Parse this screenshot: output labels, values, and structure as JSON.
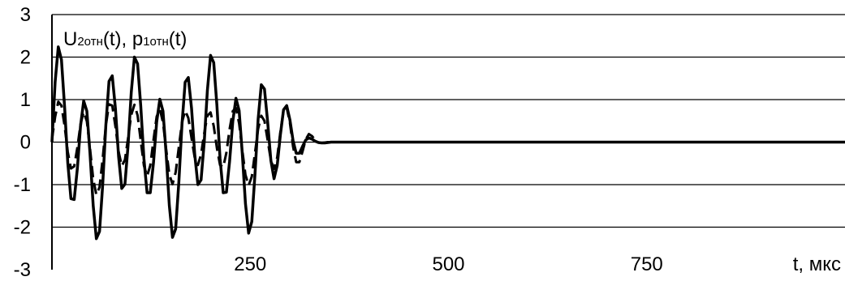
{
  "chart_data": {
    "type": "line",
    "title": "",
    "series_label": {
      "u_main": "U",
      "u_sub": "2отн",
      "u_tail": "(t), ",
      "p_main": "p",
      "p_sub": "1отн",
      "p_tail": "(t)"
    },
    "xlabel": "t, мкс",
    "ylabel": "",
    "xlim": [
      0,
      1000
    ],
    "ylim": [
      -3,
      3
    ],
    "x_ticks": [
      250,
      500,
      750
    ],
    "x_tick_labels": [
      "250",
      "500",
      "750"
    ],
    "y_ticks": [
      3,
      2,
      1,
      0,
      -1,
      -2,
      -3
    ],
    "y_tick_labels": [
      "3",
      "2",
      "1",
      "0",
      "-1",
      "-2",
      "-3"
    ],
    "grid": "horizontal",
    "line_color": "#000000",
    "series": [
      {
        "style": "solid",
        "x": [
          0,
          4,
          8,
          12,
          16,
          20,
          24,
          28,
          32,
          36,
          40,
          44,
          48,
          52,
          56,
          60,
          64,
          68,
          72,
          76,
          80,
          84,
          88,
          92,
          96,
          100,
          104,
          108,
          112,
          116,
          120,
          124,
          128,
          132,
          136,
          140,
          144,
          148,
          152,
          156,
          160,
          164,
          168,
          172,
          176,
          180,
          184,
          188,
          192,
          196,
          200,
          204,
          208,
          212,
          216,
          220,
          224,
          228,
          232,
          236,
          240,
          244,
          248,
          252,
          256,
          260,
          264,
          268,
          272,
          276,
          280,
          284,
          288,
          292,
          296,
          300,
          304,
          308,
          312,
          316,
          320,
          324,
          328,
          332,
          336,
          340,
          344,
          348,
          352,
          356,
          360,
          364,
          368,
          372,
          376,
          380,
          384,
          388,
          392,
          396,
          400,
          420,
          440,
          460,
          480,
          500,
          600,
          700,
          800,
          900,
          1000
        ],
        "y": [
          0.0,
          1.41,
          2.24,
          1.94,
          0.82,
          -0.49,
          -1.33,
          -1.35,
          -0.62,
          0.38,
          0.97,
          0.73,
          -0.27,
          -1.49,
          -2.27,
          -2.1,
          -1.01,
          0.4,
          1.43,
          1.56,
          0.79,
          -0.34,
          -1.09,
          -0.99,
          -0.07,
          1.17,
          2.0,
          1.84,
          0.85,
          -0.39,
          -1.19,
          -1.19,
          -0.48,
          0.47,
          1.01,
          0.73,
          -0.28,
          -1.49,
          -2.24,
          -2.04,
          -0.95,
          0.42,
          1.41,
          1.52,
          0.79,
          -0.29,
          -1.0,
          -0.89,
          0.0,
          1.22,
          2.04,
          1.87,
          0.87,
          -0.39,
          -1.19,
          -1.18,
          -0.46,
          0.49,
          1.03,
          0.74,
          -0.27,
          -1.45,
          -2.14,
          -1.87,
          -0.76,
          0.54,
          1.35,
          1.25,
          0.48,
          -0.43,
          -0.86,
          -0.55,
          0.17,
          0.76,
          0.86,
          0.53,
          0.04,
          -0.26,
          -0.26,
          -0.1,
          0.05,
          0.1,
          0.07,
          0.02,
          -0.01,
          -0.02,
          -0.02,
          -0.01,
          0.0,
          0.0,
          0.0,
          0.0,
          0.0,
          0.0,
          0.0,
          0.0,
          0.0,
          0.0,
          0.0,
          0.0,
          0.0,
          0.0,
          0.0,
          0.0,
          0.0,
          0.0,
          0.0,
          0.0,
          0.0,
          0.0,
          0.0
        ]
      },
      {
        "style": "dashed",
        "x": [
          0,
          4,
          8,
          12,
          16,
          20,
          24,
          28,
          32,
          36,
          40,
          44,
          48,
          52,
          56,
          60,
          64,
          68,
          72,
          76,
          80,
          84,
          88,
          92,
          96,
          100,
          104,
          108,
          112,
          116,
          120,
          124,
          128,
          132,
          136,
          140,
          144,
          148,
          152,
          156,
          160,
          164,
          168,
          172,
          176,
          180,
          184,
          188,
          192,
          196,
          200,
          204,
          208,
          212,
          216,
          220,
          224,
          228,
          232,
          236,
          240,
          244,
          248,
          252,
          256,
          260,
          264,
          268,
          272,
          276,
          280,
          284,
          288,
          292,
          296,
          300,
          304,
          308,
          312,
          316,
          320,
          324,
          328,
          332,
          336,
          340,
          344,
          348,
          352,
          356,
          360,
          364,
          368,
          372,
          376,
          380,
          384,
          388,
          392,
          396,
          400,
          420,
          440,
          460,
          480,
          500,
          600,
          700,
          800,
          900,
          1000
        ],
        "y": [
          0.06,
          0.59,
          0.95,
          0.86,
          0.38,
          -0.23,
          -0.62,
          -0.57,
          -0.13,
          0.42,
          0.71,
          0.49,
          -0.15,
          -0.86,
          -1.24,
          -1.06,
          -0.39,
          0.39,
          0.89,
          0.86,
          0.37,
          -0.22,
          -0.56,
          -0.42,
          0.1,
          0.64,
          0.88,
          0.63,
          0.03,
          -0.55,
          -0.8,
          -0.55,
          0.05,
          0.6,
          0.78,
          0.46,
          -0.17,
          -0.76,
          -0.99,
          -0.71,
          -0.12,
          0.46,
          0.74,
          0.57,
          0.09,
          -0.37,
          -0.54,
          -0.29,
          0.21,
          0.62,
          0.7,
          0.38,
          -0.14,
          -0.54,
          -0.59,
          -0.25,
          0.3,
          0.73,
          0.8,
          0.44,
          -0.19,
          -0.77,
          -1.02,
          -0.81,
          -0.26,
          0.31,
          0.62,
          0.5,
          0.05,
          -0.43,
          -0.63,
          -0.36,
          0.24,
          0.73,
          0.81,
          0.46,
          -0.1,
          -0.47,
          -0.47,
          -0.22,
          0.06,
          0.19,
          0.14,
          0.04,
          -0.01,
          -0.02,
          -0.01,
          0.0,
          0.0,
          0.0,
          0.0,
          0.0,
          0.0,
          0.0,
          0.0,
          0.0,
          0.0,
          0.0,
          0.0,
          0.0,
          0.0,
          0.0,
          0.0,
          0.0,
          0.0,
          0.0,
          0.0,
          0.0,
          0.0,
          0.0,
          0.0
        ]
      }
    ]
  }
}
